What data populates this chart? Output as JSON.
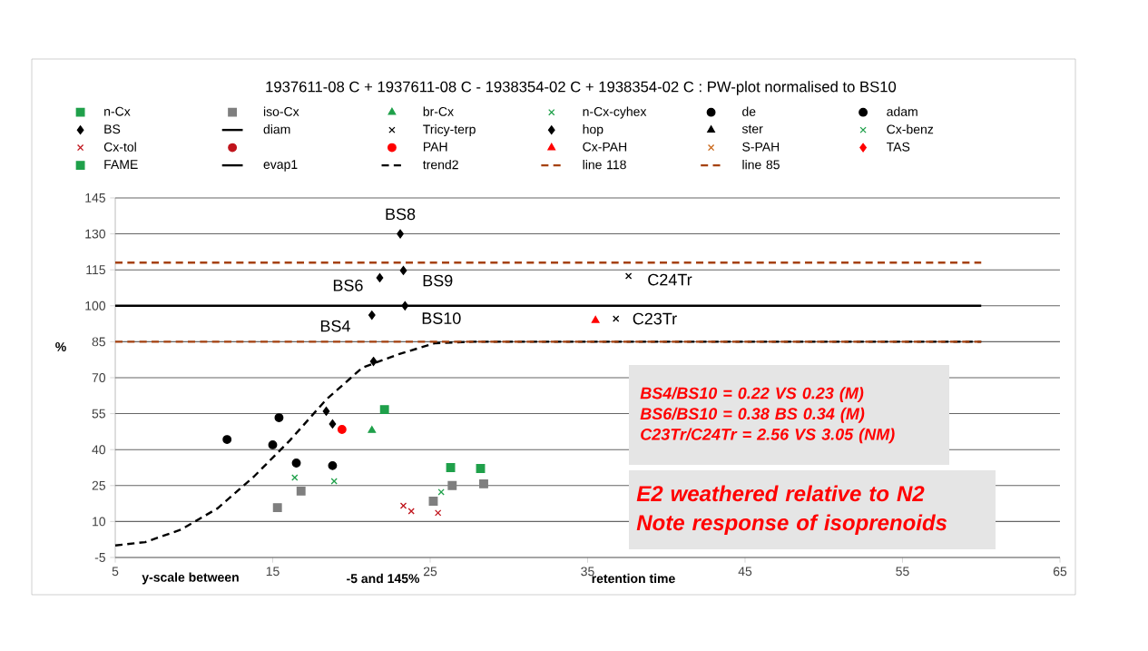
{
  "chart_data": {
    "type": "scatter",
    "title": "1937611-08 C + 1937611-08 C  -   1938354-02 C + 1938354-02 C :   PW-plot normalised to BS10",
    "xlabel": "retention time",
    "ylabel": "%",
    "xlim": [
      5,
      65
    ],
    "ylim": [
      -5,
      145
    ],
    "xticks": [
      5,
      15,
      25,
      35,
      45,
      55,
      65
    ],
    "yticks": [
      -5,
      10,
      25,
      40,
      55,
      70,
      85,
      100,
      115,
      130,
      145
    ],
    "grid": "y",
    "legend": "top",
    "series": [
      {
        "name": "n-Cx",
        "color": "#1fa04a",
        "marker": "square",
        "x": [
          22.1,
          26.3,
          28.2
        ],
        "values": [
          56.7,
          32.5,
          32.1
        ]
      },
      {
        "name": "iso-Cx",
        "color": "#7f7f7f",
        "marker": "square",
        "x": [
          15.3,
          16.8,
          25.2,
          26.4,
          28.4
        ],
        "values": [
          15.8,
          22.7,
          18.5,
          25,
          25.7
        ]
      },
      {
        "name": "br-Cx",
        "color": "#1fa04a",
        "marker": "triangle",
        "x": [
          21.3
        ],
        "values": [
          48
        ]
      },
      {
        "name": "n-Cx-cyhex",
        "color": "#1fa04a",
        "marker": "cross"
      },
      {
        "name": "de",
        "color": "#000000",
        "marker": "circle",
        "x": [
          18.8
        ],
        "values": [
          33.3
        ]
      },
      {
        "name": "adam",
        "color": "#000000",
        "marker": "circle",
        "x": [
          12.1,
          15.4,
          15.0,
          16.5
        ],
        "values": [
          44.2,
          53.3,
          42.0,
          34.4
        ]
      },
      {
        "name": "BS",
        "color": "#000000",
        "marker": "diamond",
        "x": [
          23.1,
          23.3,
          21.8,
          23.4,
          21.3,
          21.4,
          18.4,
          18.8
        ],
        "values": [
          130,
          114.7,
          111.7,
          100,
          96.1,
          76.8,
          56.0,
          50.7
        ]
      },
      {
        "name": "diam",
        "type": "line",
        "color": "#000000",
        "line_style": "solid"
      },
      {
        "name": "Tricy-terp",
        "color": "#000000",
        "marker": "cross",
        "x": [
          37.6,
          36.8
        ],
        "values": [
          112.4,
          94.6
        ]
      },
      {
        "name": "hop",
        "color": "#000000",
        "marker": "diamond"
      },
      {
        "name": "ster",
        "color": "#000000",
        "marker": "triangle"
      },
      {
        "name": "Cx-benz",
        "color": "#1fa04a",
        "marker": "cross",
        "x": [
          16.4,
          18.9,
          25.7
        ],
        "values": [
          28.3,
          26.8,
          22.3
        ]
      },
      {
        "name": "Cx-tol",
        "color": "#c0141c",
        "marker": "cross",
        "x": [
          23.3,
          23.8,
          25.5
        ],
        "values": [
          16.6,
          14.3,
          13.6
        ]
      },
      {
        "name": null,
        "color": "#c0141c",
        "marker": "circle"
      },
      {
        "name": "PAH",
        "color": "#ff0000",
        "marker": "circle",
        "x": [
          19.4
        ],
        "values": [
          48.4
        ]
      },
      {
        "name": "Cx-PAH",
        "color": "#ff0000",
        "marker": "triangle",
        "x": [
          35.5
        ],
        "values": [
          93.9
        ]
      },
      {
        "name": "S-PAH",
        "color": "#c86414",
        "marker": "cross"
      },
      {
        "name": "TAS",
        "color": "#ff0000",
        "marker": "diamond"
      },
      {
        "name": "FAME",
        "color": "#1fa04a",
        "marker": "square"
      },
      {
        "name": "evap1",
        "type": "line",
        "color": "#000000",
        "line_style": "solid",
        "x": [
          5,
          60
        ],
        "values": [
          100,
          100
        ]
      },
      {
        "name": "trend2",
        "type": "line",
        "color": "#000000",
        "line_style": "dashed",
        "x": [
          5,
          6.9,
          9.2,
          11.5,
          13.8,
          16.1,
          18.4,
          20.7,
          23.0,
          25.3,
          27.7,
          60
        ],
        "values": [
          0,
          1.4,
          6.7,
          15.5,
          28.7,
          43.9,
          60.9,
          74.2,
          79.8,
          84.4,
          85,
          85
        ]
      },
      {
        "name": "line 118",
        "type": "line",
        "color": "#a5410f",
        "line_style": "dashed",
        "x": [
          5,
          60
        ],
        "values": [
          118,
          118
        ]
      },
      {
        "name": "line 85",
        "type": "line",
        "color": "#a5410f",
        "line_style": "dashed",
        "x": [
          5,
          60
        ],
        "values": [
          85,
          85
        ]
      }
    ],
    "annotations": [
      {
        "text": "BS8",
        "x": 23.1,
        "y": 130
      },
      {
        "text": "BS6",
        "x": 21.8,
        "y": 111.7
      },
      {
        "text": "BS9",
        "x": 23.3,
        "y": 114.7
      },
      {
        "text": "BS10",
        "x": 23.4,
        "y": 100
      },
      {
        "text": "BS4",
        "x": 21.3,
        "y": 96.1
      },
      {
        "text": "C24Tr",
        "x": 37.6,
        "y": 112.4
      },
      {
        "text": "C23Tr",
        "x": 36.8,
        "y": 94.6
      },
      "BS4/BS10 = 0.22 VS 0.23 (M)",
      "BS6/BS10 = 0.38 BS 0.34 (M)",
      "C23Tr/C24Tr = 2.56 VS 3.05 (NM)",
      "E2 weathered relative to N2",
      "Note response of isoprenoids",
      "y-scale between",
      "-5 and 145%"
    ]
  }
}
